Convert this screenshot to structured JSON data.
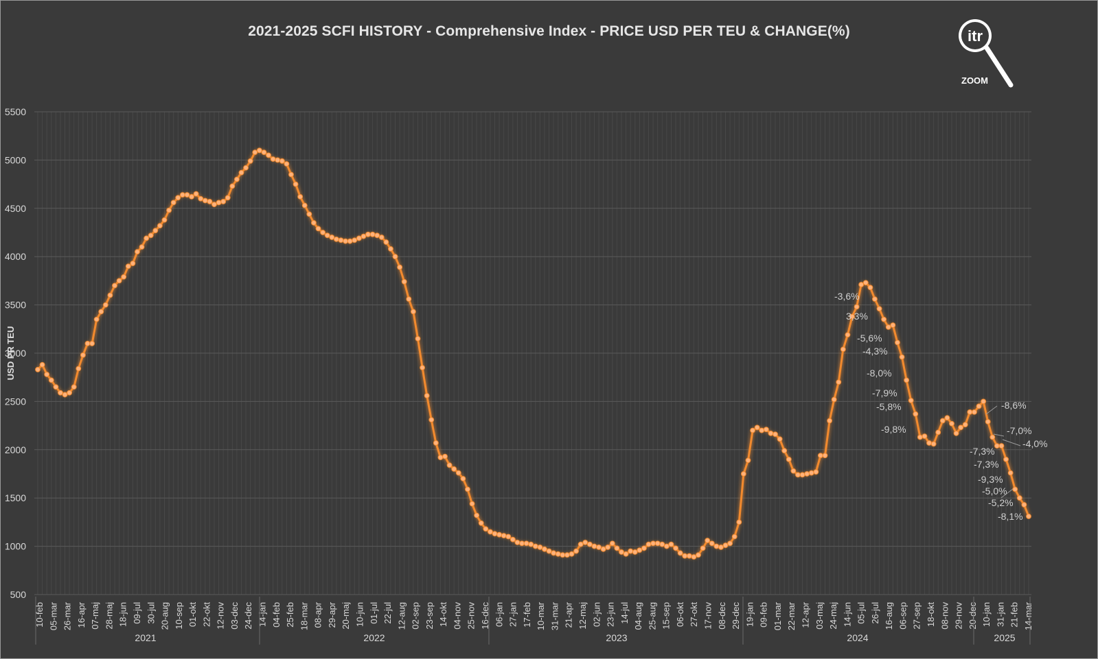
{
  "title": "2021-2025 SCFI HISTORY - Comprehensive Index - PRICE USD PER TEU & CHANGE(%)",
  "logo": {
    "text": "itr",
    "caption": "ZOOM"
  },
  "colors": {
    "background": "#3a3a3a",
    "line": "#f28a2e",
    "marker": "#ffb27a",
    "grid": "#5a5a5a",
    "text": "#d9d9d9"
  },
  "chart_data": {
    "type": "line",
    "ylabel": "USD PR TEU",
    "ylim": [
      500,
      5500
    ],
    "yticks": [
      500,
      1000,
      1500,
      2000,
      2500,
      3000,
      3500,
      4000,
      4500,
      5000,
      5500
    ],
    "grid": true,
    "x_tick_labels": [
      "10-feb",
      "05-mar",
      "26-mar",
      "16-apr",
      "07-maj",
      "28-maj",
      "18-jun",
      "09-jul",
      "30-jul",
      "20-aug",
      "10-sep",
      "01-okt",
      "22-okt",
      "12-nov",
      "03-dec",
      "24-dec",
      "14-jan",
      "04-feb",
      "25-feb",
      "18-mar",
      "08-apr",
      "29-apr",
      "20-maj",
      "10-jun",
      "01-jul",
      "22-jul",
      "12-aug",
      "02-sep",
      "23-sep",
      "14-okt",
      "04-nov",
      "25-nov",
      "16-dec",
      "06-jan",
      "27-jan",
      "17-feb",
      "10-mar",
      "31-mar",
      "21-apr",
      "12-maj",
      "02-jun",
      "23-jun",
      "14-jul",
      "04-aug",
      "25-aug",
      "15-sep",
      "06-okt",
      "27-okt",
      "17-nov",
      "08-dec",
      "29-dec",
      "19-jan",
      "09-feb",
      "01-mar",
      "22-mar",
      "12-apr",
      "03-maj",
      "24-maj",
      "14-jun",
      "05-jul",
      "26-jul",
      "16-aug",
      "06-sep",
      "27-sep",
      "18-okt",
      "08-nov",
      "29-nov",
      "20-dec",
      "10-jan",
      "31-jan",
      "21-feb",
      "14-mar"
    ],
    "year_labels": [
      "2021",
      "2022",
      "2023",
      "2024",
      "2025"
    ],
    "series": [
      {
        "values": [
          2830,
          2880,
          2780,
          2720,
          2650,
          2590,
          2570,
          2590,
          2650,
          2840,
          2980,
          3100,
          3100,
          3350,
          3430,
          3500,
          3600,
          3700,
          3750,
          3790,
          3900,
          3930,
          4050,
          4100,
          4190,
          4220,
          4270,
          4320,
          4380,
          4480,
          4560,
          4610,
          4640,
          4640,
          4620,
          4650,
          4600,
          4580,
          4570,
          4540,
          4560,
          4570,
          4610,
          4730,
          4800,
          4870,
          4920,
          4990,
          5080,
          5100,
          5080,
          5050,
          5010,
          5000,
          4990,
          4960,
          4850,
          4750,
          4620,
          4530,
          4440,
          4350,
          4290,
          4250,
          4220,
          4200,
          4180,
          4170,
          4160,
          4160,
          4170,
          4190,
          4210,
          4230,
          4230,
          4220,
          4200,
          4150,
          4080,
          4000,
          3890,
          3740,
          3560,
          3430,
          3150,
          2850,
          2560,
          2310,
          2070,
          1920,
          1930,
          1840,
          1800,
          1760,
          1700,
          1590,
          1440,
          1320,
          1240,
          1180,
          1150,
          1130,
          1120,
          1110,
          1100,
          1070,
          1040,
          1030,
          1030,
          1020,
          1000,
          990,
          970,
          950,
          930,
          920,
          910,
          910,
          920,
          950,
          1020,
          1040,
          1020,
          1000,
          990,
          970,
          990,
          1030,
          980,
          940,
          920,
          950,
          940,
          960,
          980,
          1020,
          1030,
          1030,
          1020,
          1000,
          1020,
          980,
          930,
          900,
          900,
          890,
          910,
          980,
          1060,
          1030,
          1000,
          990,
          1010,
          1030,
          1100,
          1250,
          1750,
          1890,
          2200,
          2230,
          2200,
          2210,
          2170,
          2160,
          2110,
          1990,
          1900,
          1780,
          1740,
          1740,
          1750,
          1760,
          1770,
          1940,
          1940,
          2300,
          2520,
          2700,
          3040,
          3190,
          3380,
          3480,
          3710,
          3730,
          3680,
          3560,
          3460,
          3350,
          3270,
          3290,
          3110,
          2960,
          2720,
          2510,
          2370,
          2130,
          2140,
          2070,
          2060,
          2180,
          2300,
          2330,
          2270,
          2170,
          2230,
          2260,
          2390,
          2390,
          2450,
          2500,
          2290,
          2130,
          2040,
          2040,
          1900,
          1760,
          1590,
          1500,
          1430,
          1310
        ]
      }
    ],
    "annotations": [
      "-3,6%",
      "3,3%",
      "-5,6%",
      "-4,3%",
      "-8,0%",
      "-7,9%",
      "-5,8%",
      "-9,8%",
      "-8,6%",
      "-7,0%",
      "-4,0%",
      "-7,3%",
      "-7,3%",
      "-9,3%",
      "-5,0%",
      "-5,2%",
      "-8,1%"
    ]
  }
}
